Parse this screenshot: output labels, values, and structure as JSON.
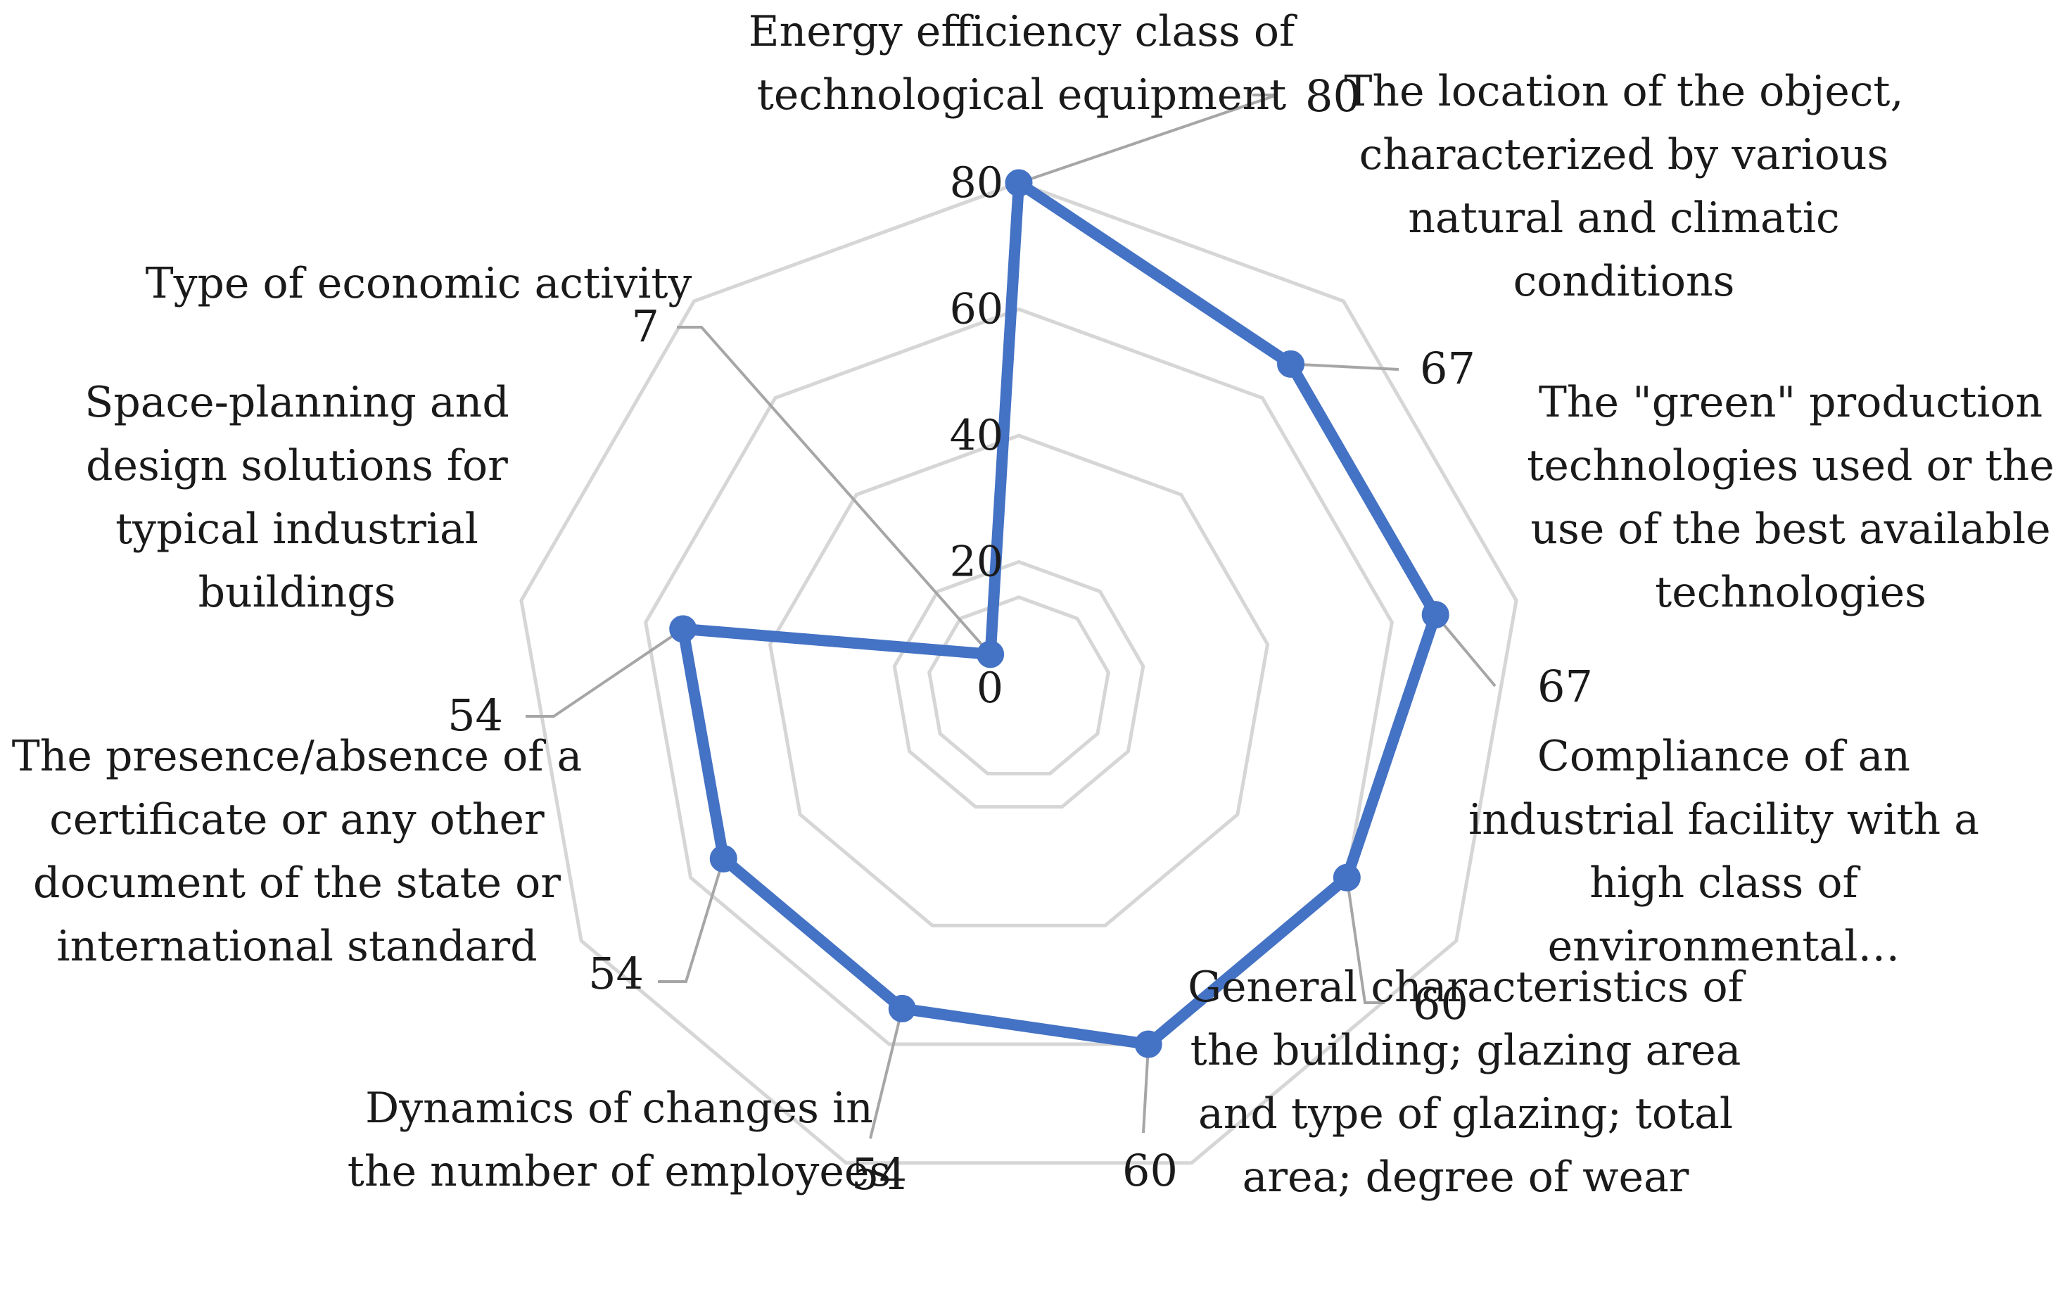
{
  "chart_data": {
    "type": "radar",
    "categories": [
      [
        "Energy efficiency class of",
        "technological equipment"
      ],
      [
        "The location of the object,",
        "characterized by various",
        "natural and climatic",
        "conditions"
      ],
      [
        "The \"green\" production",
        "technologies used or the",
        "use of the best available",
        "technologies"
      ],
      [
        "Compliance of an",
        "industrial facility with a",
        "high class of",
        "environmental…"
      ],
      [
        "General characteristics of",
        "the building; glazing area",
        "and type of glazing; total",
        "area; degree of wear"
      ],
      [
        "Dynamics of changes in",
        "the number of employees"
      ],
      [
        "The presence/absence of a",
        "certificate or any other",
        "document of the state or",
        "international standard"
      ],
      [
        "Space-planning and",
        "design solutions for",
        "typical industrial",
        "buildings"
      ],
      [
        "Type of economic activity"
      ]
    ],
    "values": [
      80,
      67,
      67,
      60,
      60,
      54,
      54,
      54,
      7
    ],
    "data_labels": [
      "80",
      "67",
      "67",
      "60",
      "60",
      "54",
      "54",
      "54",
      "7"
    ],
    "rlim": [
      0,
      80
    ],
    "ticks": [
      0,
      20,
      40,
      60,
      80
    ],
    "tick_labels": [
      "0",
      "20",
      "40",
      "60",
      "80"
    ],
    "grid": true,
    "legend": "none",
    "colors": {
      "series": "#4472c4",
      "grid": "#d6d6d6",
      "leader": "#a6a6a6"
    }
  }
}
